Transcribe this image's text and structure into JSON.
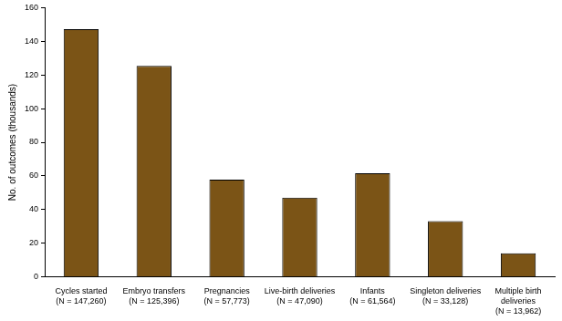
{
  "chart_data": {
    "type": "bar",
    "y_label": "No. of outcomes (thousands)",
    "categories": [
      "Cycles started\n(N = 147,260)",
      "Embryo transfers\n(N = 125,396)",
      "Pregnancies\n(N = 57,773)",
      "Live-birth deliveries\n(N = 47,090)",
      "Infants\n(N = 61,564)",
      "Singleton deliveries\n(N = 33,128)",
      "Multiple birth\ndeliveries\n(N = 13,962)"
    ],
    "values": [
      147.26,
      125.396,
      57.773,
      47.09,
      61.564,
      33.128,
      13.962
    ],
    "color": "#7b5416",
    "ylim": [
      0,
      160
    ],
    "yticks": [
      0,
      20,
      40,
      60,
      80,
      100,
      120,
      140,
      160
    ],
    "grid": false
  }
}
